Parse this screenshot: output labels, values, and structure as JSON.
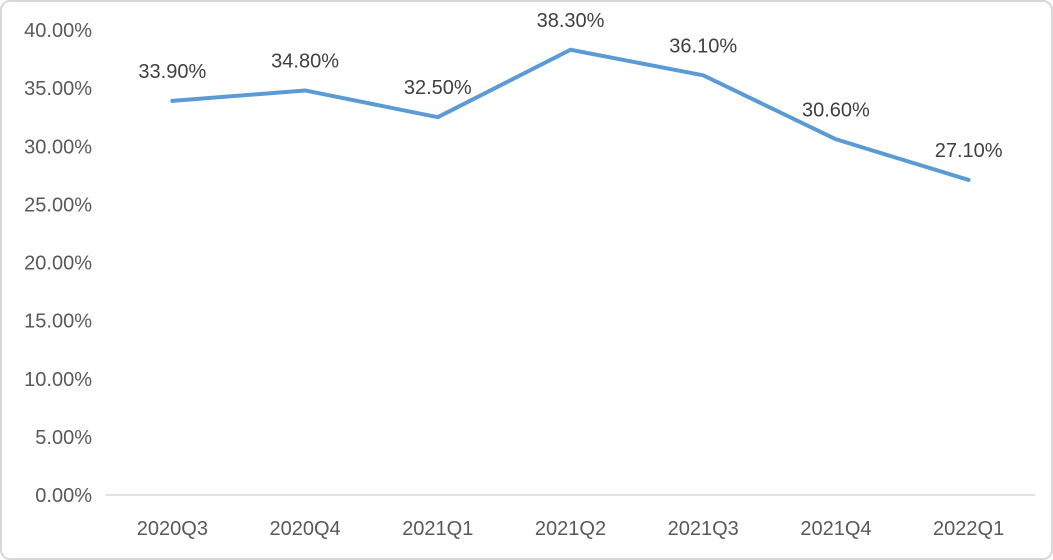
{
  "chart_data": {
    "type": "line",
    "title": "",
    "xlabel": "",
    "ylabel": "",
    "categories": [
      "2020Q3",
      "2020Q4",
      "2021Q1",
      "2021Q2",
      "2021Q3",
      "2021Q4",
      "2022Q1"
    ],
    "series": [
      {
        "name": "series1",
        "values": [
          33.9,
          34.8,
          32.5,
          38.3,
          36.1,
          30.6,
          27.1
        ],
        "point_labels": [
          "33.90%",
          "34.80%",
          "32.50%",
          "38.30%",
          "36.10%",
          "30.60%",
          "27.10%"
        ],
        "label_position": "above"
      }
    ],
    "ylim": [
      0,
      40
    ],
    "ytick_values": [
      0,
      5,
      10,
      15,
      20,
      25,
      30,
      35,
      40
    ],
    "ytick_labels": [
      "0.00%",
      "5.00%",
      "10.00%",
      "15.00%",
      "20.00%",
      "25.00%",
      "30.00%",
      "35.00%",
      "40.00%"
    ],
    "grid": false,
    "legend": "none",
    "colors": {
      "line": "#5b9bd5",
      "axis_line": "#d9d9d9",
      "axis_text": "#595959",
      "data_label_text": "#404040",
      "frame_border": "#d7d7d7",
      "background": "#ffffff"
    }
  }
}
